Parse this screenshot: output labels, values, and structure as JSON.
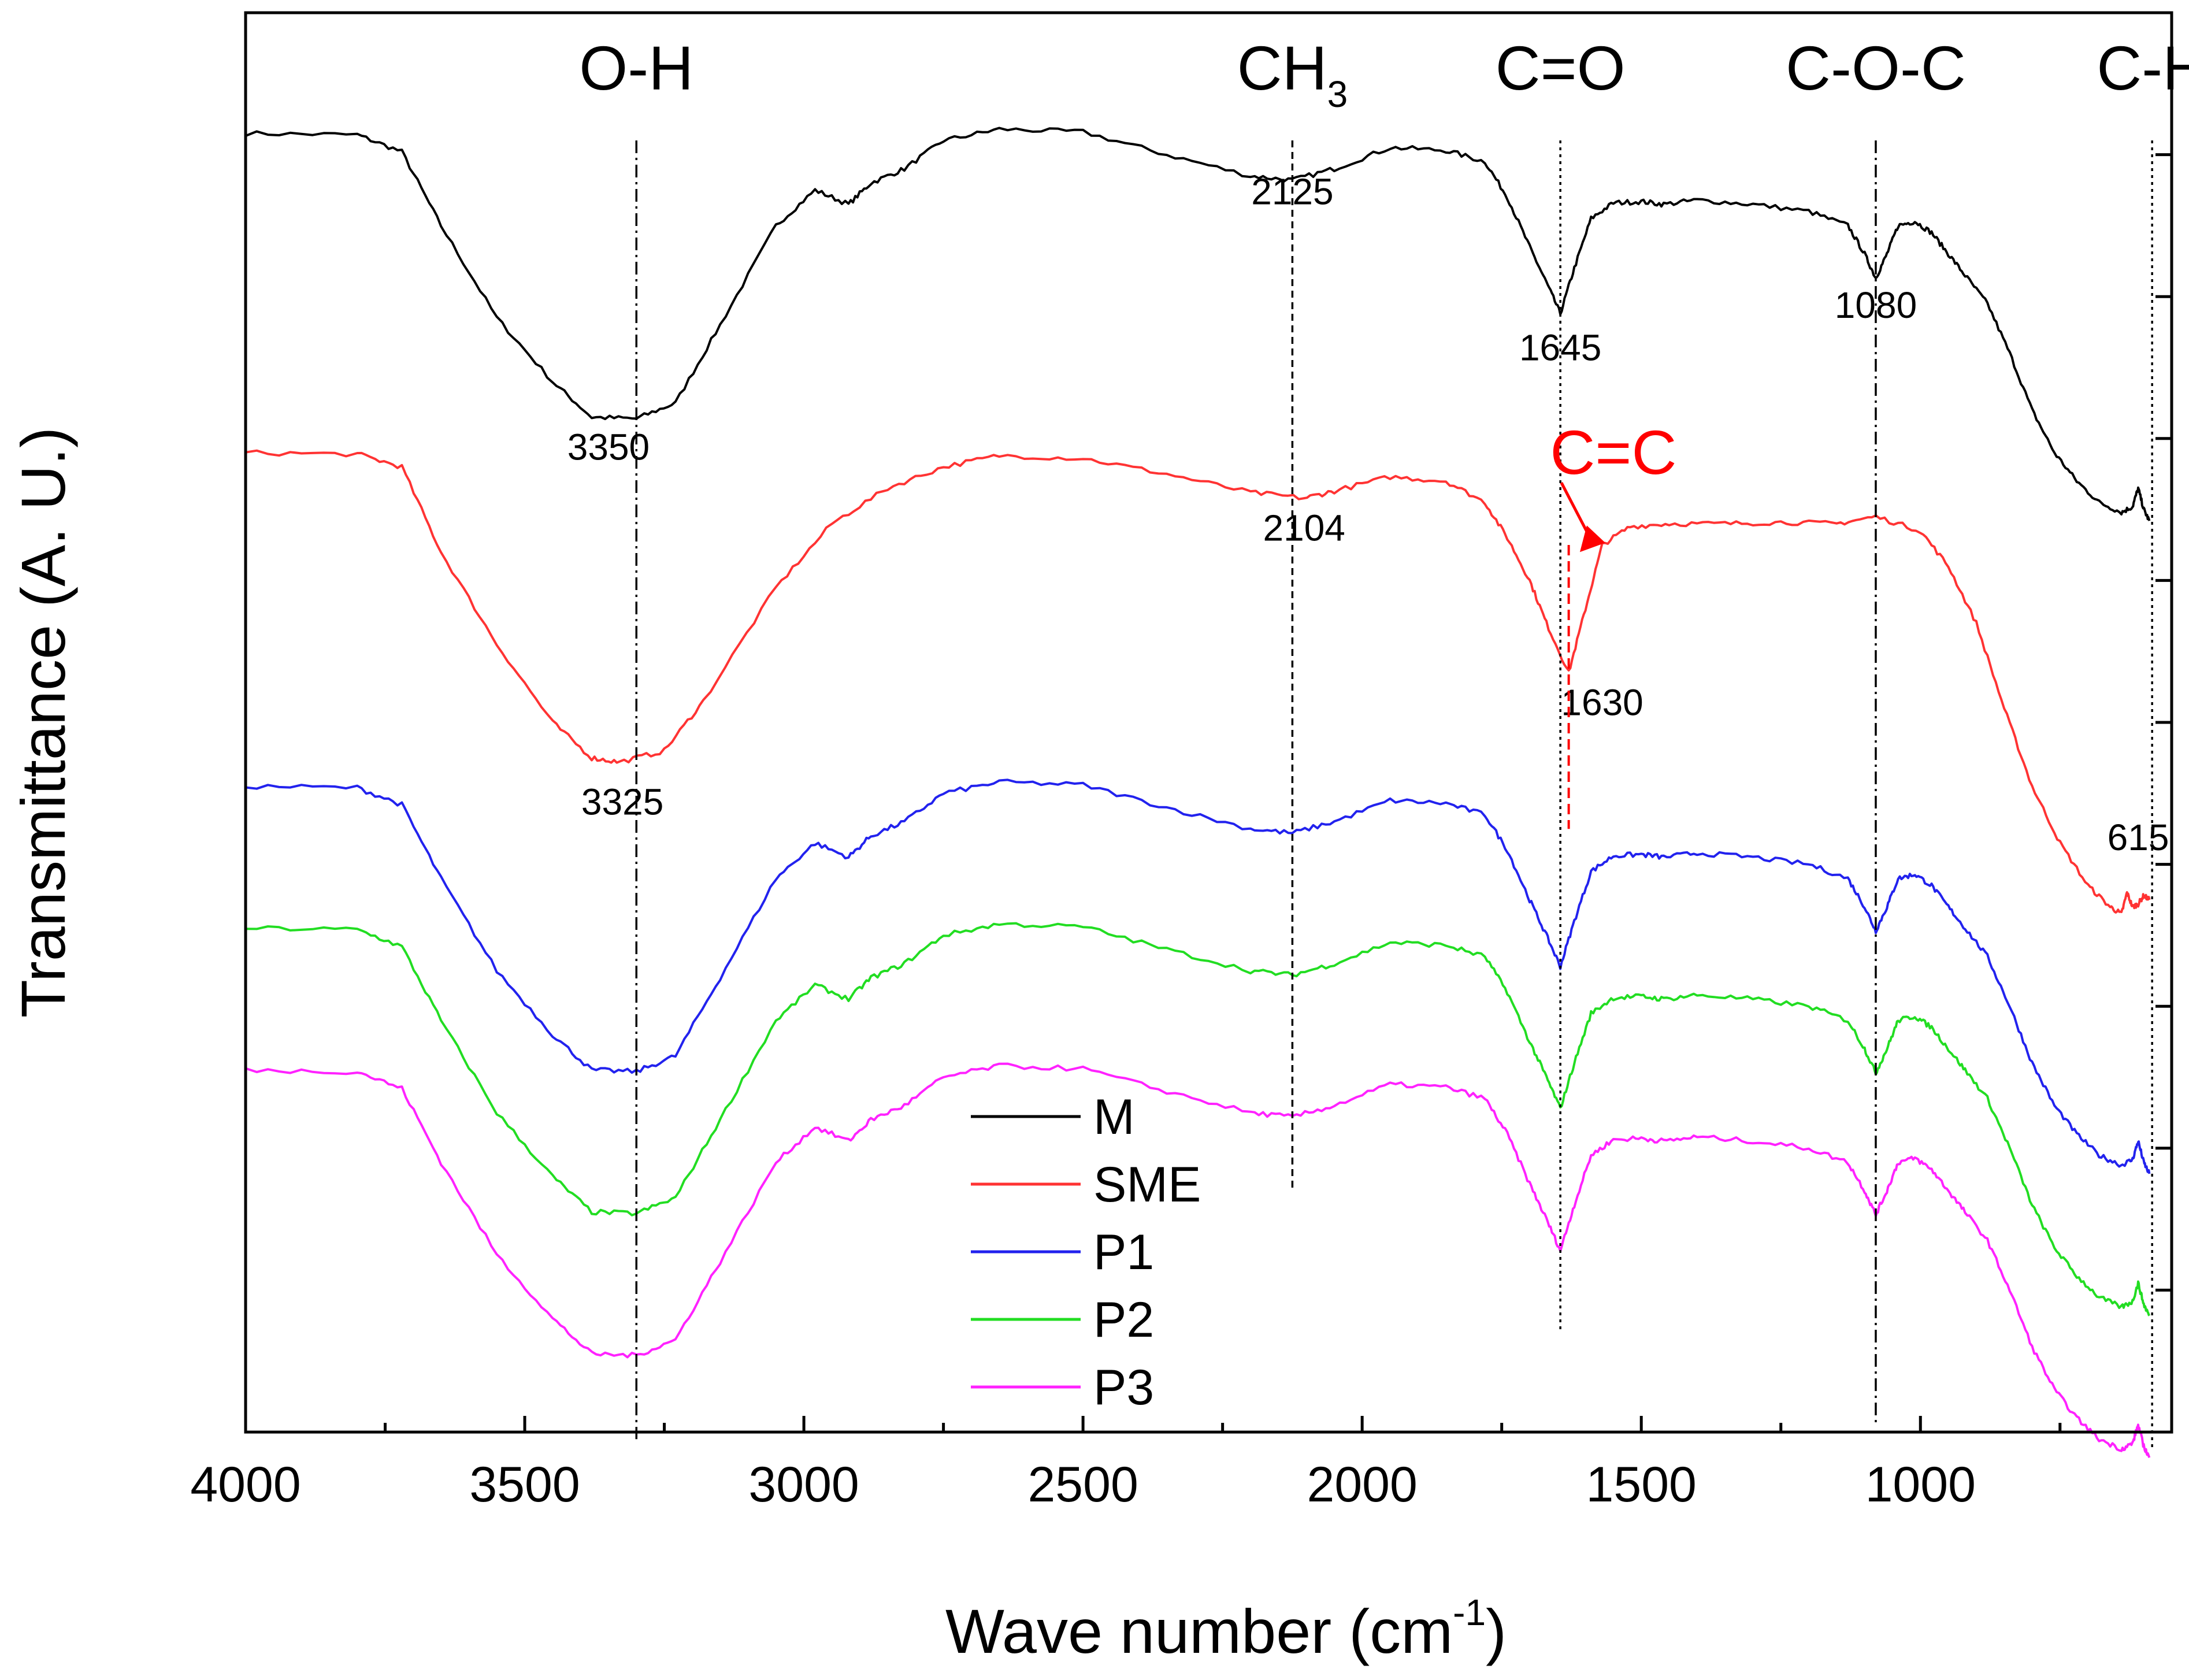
{
  "chart_data": {
    "type": "line",
    "title": "",
    "xlabel": "Wave number (cm",
    "xlabel_sup": "-1",
    "xlabel_close": ")",
    "ylabel": "Transmittance (A. U.)",
    "xlim": [
      4000,
      550
    ],
    "ylim": [
      0,
      100
    ],
    "xticks": [
      4000,
      3500,
      3000,
      2500,
      2000,
      1500,
      1000
    ],
    "xtick_labels": [
      "4000",
      "3500",
      "3000",
      "2500",
      "2000",
      "1500",
      "1000"
    ],
    "yticks": [
      10,
      20,
      30,
      40,
      50,
      60,
      70,
      80,
      90,
      100
    ],
    "y_tick_labels_shown": false,
    "legend_position": "center",
    "series": [
      {
        "name": "M",
        "color": "#000000",
        "x": [
          4000,
          3800,
          3720,
          3650,
          3550,
          3450,
          3380,
          3300,
          3230,
          3150,
          3050,
          2980,
          2920,
          2880,
          2820,
          2750,
          2650,
          2500,
          2350,
          2200,
          2125,
          2050,
          1950,
          1850,
          1780,
          1740,
          1700,
          1670,
          1645,
          1620,
          1590,
          1550,
          1500,
          1460,
          1400,
          1300,
          1200,
          1130,
          1100,
          1080,
          1060,
          1040,
          1010,
          980,
          950,
          920,
          880,
          840,
          800,
          760,
          720,
          680,
          640,
          620,
          610,
          600,
          590
        ],
        "y": [
          91.5,
          91.4,
          90.2,
          85.0,
          78.5,
          74.0,
          71.5,
          71.4,
          72.5,
          78.0,
          85.0,
          87.5,
          86.5,
          88.0,
          89.0,
          91.0,
          91.8,
          91.6,
          90.0,
          88.5,
          88.2,
          89.0,
          90.5,
          90.3,
          89.5,
          87.0,
          83.5,
          81.0,
          78.8,
          82.0,
          85.5,
          86.6,
          86.7,
          86.5,
          86.8,
          86.5,
          86.0,
          85.0,
          83.0,
          81.3,
          83.0,
          85.0,
          85.3,
          84.5,
          83.0,
          81.5,
          79.5,
          76.0,
          72.0,
          69.0,
          67.0,
          65.5,
          64.8,
          65.2,
          66.5,
          65.0,
          64.2
        ]
      },
      {
        "name": "SME",
        "color": "#ff3333",
        "x": [
          4000,
          3800,
          3720,
          3650,
          3550,
          3450,
          3380,
          3330,
          3250,
          3180,
          3050,
          2950,
          2850,
          2750,
          2650,
          2500,
          2350,
          2200,
          2104,
          2050,
          1950,
          1850,
          1780,
          1740,
          1700,
          1670,
          1630,
          1600,
          1570,
          1520,
          1450,
          1350,
          1250,
          1150,
          1080,
          1000,
          950,
          900,
          850,
          800,
          750,
          700,
          660,
          640,
          630,
          620,
          610,
          600,
          590
        ],
        "y": [
          69.0,
          68.9,
          68.0,
          62.0,
          55.5,
          50.0,
          47.5,
          47.2,
          48.0,
          51.5,
          59.5,
          64.0,
          66.5,
          68.0,
          68.8,
          68.6,
          67.5,
          66.2,
          65.8,
          66.3,
          67.3,
          67.0,
          65.5,
          63.0,
          60.0,
          57.0,
          53.5,
          58.0,
          62.5,
          63.8,
          64.0,
          64.0,
          64.1,
          64.0,
          64.5,
          63.5,
          61.0,
          57.0,
          51.0,
          45.5,
          41.5,
          38.5,
          37.0,
          36.5,
          38.0,
          37.0,
          37.2,
          37.8,
          37.5
        ]
      },
      {
        "name": "P1",
        "color": "#2222ee",
        "x": [
          4000,
          3800,
          3720,
          3650,
          3550,
          3450,
          3380,
          3300,
          3230,
          3150,
          3050,
          2980,
          2920,
          2880,
          2820,
          2750,
          2650,
          2500,
          2350,
          2200,
          2125,
          2050,
          1950,
          1850,
          1780,
          1740,
          1700,
          1670,
          1645,
          1620,
          1590,
          1550,
          1500,
          1460,
          1400,
          1300,
          1200,
          1130,
          1100,
          1080,
          1060,
          1040,
          1010,
          980,
          950,
          920,
          880,
          840,
          800,
          760,
          720,
          680,
          640,
          620,
          610,
          600,
          590
        ],
        "y": [
          45.5,
          45.4,
          44.2,
          39.0,
          32.5,
          28.0,
          25.5,
          25.4,
          26.5,
          32.0,
          39.0,
          41.5,
          40.5,
          42.0,
          43.0,
          45.0,
          45.8,
          45.6,
          44.0,
          42.5,
          42.2,
          43.0,
          44.5,
          44.3,
          43.5,
          41.0,
          37.5,
          35.0,
          32.8,
          36.0,
          39.5,
          40.6,
          40.7,
          40.5,
          40.8,
          40.5,
          40.0,
          39.0,
          37.0,
          35.3,
          37.0,
          39.0,
          39.3,
          38.5,
          37.0,
          35.5,
          33.5,
          30.0,
          26.0,
          23.0,
          21.0,
          19.5,
          18.8,
          19.2,
          20.5,
          19.0,
          18.2
        ]
      },
      {
        "name": "P2",
        "color": "#22dd22",
        "x": [
          4000,
          3800,
          3720,
          3650,
          3550,
          3450,
          3380,
          3300,
          3230,
          3150,
          3050,
          2980,
          2920,
          2880,
          2820,
          2750,
          2650,
          2500,
          2350,
          2200,
          2125,
          2050,
          1950,
          1850,
          1780,
          1740,
          1700,
          1670,
          1645,
          1620,
          1590,
          1550,
          1500,
          1460,
          1400,
          1300,
          1200,
          1130,
          1100,
          1080,
          1060,
          1040,
          1010,
          980,
          950,
          920,
          880,
          840,
          800,
          760,
          720,
          680,
          640,
          620,
          610,
          600,
          590
        ],
        "y": [
          35.5,
          35.4,
          34.2,
          29.0,
          22.5,
          18.0,
          15.5,
          15.4,
          16.5,
          22.0,
          29.0,
          31.5,
          30.5,
          32.0,
          33.0,
          35.0,
          35.8,
          35.6,
          34.0,
          32.5,
          32.2,
          33.0,
          34.5,
          34.3,
          33.5,
          31.0,
          27.5,
          25.0,
          22.8,
          26.0,
          29.5,
          30.6,
          30.7,
          30.5,
          30.8,
          30.5,
          30.0,
          29.0,
          27.0,
          25.3,
          27.0,
          29.0,
          29.3,
          28.5,
          27.0,
          25.5,
          23.5,
          20.0,
          16.0,
          13.0,
          11.0,
          9.5,
          8.8,
          9.2,
          10.5,
          9.0,
          8.2
        ]
      },
      {
        "name": "P3",
        "color": "#ff22ff",
        "x": [
          4000,
          3800,
          3720,
          3650,
          3550,
          3450,
          3380,
          3300,
          3230,
          3150,
          3050,
          2980,
          2920,
          2880,
          2820,
          2750,
          2650,
          2500,
          2350,
          2200,
          2125,
          2050,
          1950,
          1850,
          1780,
          1740,
          1700,
          1670,
          1645,
          1620,
          1590,
          1550,
          1500,
          1460,
          1400,
          1300,
          1200,
          1130,
          1100,
          1080,
          1060,
          1040,
          1010,
          980,
          950,
          920,
          880,
          840,
          800,
          760,
          720,
          680,
          640,
          620,
          610,
          600,
          590
        ],
        "y": [
          25.5,
          25.4,
          24.2,
          19.0,
          12.5,
          8.0,
          5.5,
          5.4,
          6.5,
          12.0,
          19.0,
          21.5,
          20.5,
          22.0,
          23.0,
          25.0,
          25.8,
          25.6,
          24.0,
          22.5,
          22.2,
          23.0,
          24.5,
          24.3,
          23.5,
          21.0,
          17.5,
          15.0,
          12.8,
          16.0,
          19.5,
          20.6,
          20.7,
          20.5,
          20.8,
          20.5,
          20.0,
          19.0,
          17.0,
          15.3,
          17.0,
          19.0,
          19.3,
          18.5,
          17.0,
          15.5,
          13.5,
          10.0,
          6.0,
          3.0,
          1.0,
          -0.5,
          -1.2,
          -0.8,
          0.5,
          -1.0,
          -1.8
        ]
      }
    ],
    "group_labels": [
      {
        "text": "O-H",
        "x": 3300
      },
      {
        "text": "CH",
        "sub": "3",
        "x": 2125
      },
      {
        "text": "C=O",
        "x": 1645
      },
      {
        "text": "C-O-C",
        "x": 1080
      },
      {
        "text": "C-H",
        "x": 585
      }
    ],
    "reference_lines": [
      {
        "x": 3300,
        "style": "dashdot",
        "y_from": 91,
        "y_to": -0.5
      },
      {
        "x": 2125,
        "style": "dashed",
        "y_from": 91,
        "y_to": 17
      },
      {
        "x": 1645,
        "style": "dotted",
        "y_from": 91,
        "y_to": 7
      },
      {
        "x": 1080,
        "style": "dashdot",
        "y_from": 91,
        "y_to": 0.5
      },
      {
        "x": 585,
        "style": "dotted",
        "y_from": 91,
        "y_to": -1.2
      }
    ],
    "peak_labels": [
      {
        "text": "3350",
        "x": 3350,
        "y": 68.5
      },
      {
        "text": "2125",
        "x": 2125,
        "y": 86.5
      },
      {
        "text": "1645",
        "x": 1645,
        "y": 75.5
      },
      {
        "text": "1080",
        "x": 1080,
        "y": 78.5
      },
      {
        "text": "2104",
        "x": 2104,
        "y": 62.8
      },
      {
        "text": "1630",
        "x": 1570,
        "y": 50.5
      },
      {
        "text": "3325",
        "x": 3325,
        "y": 43.5
      },
      {
        "text": "615",
        "x": 610,
        "y": 41.0
      }
    ],
    "annotation": {
      "text": "C=C",
      "color": "#ff0000",
      "x": 1550,
      "y": 67.5,
      "arrow_to": {
        "x": 1610,
        "y": 62.0
      },
      "marker_line": {
        "x": 1630,
        "y_from": 62.5,
        "y_to": 42.5
      }
    }
  }
}
